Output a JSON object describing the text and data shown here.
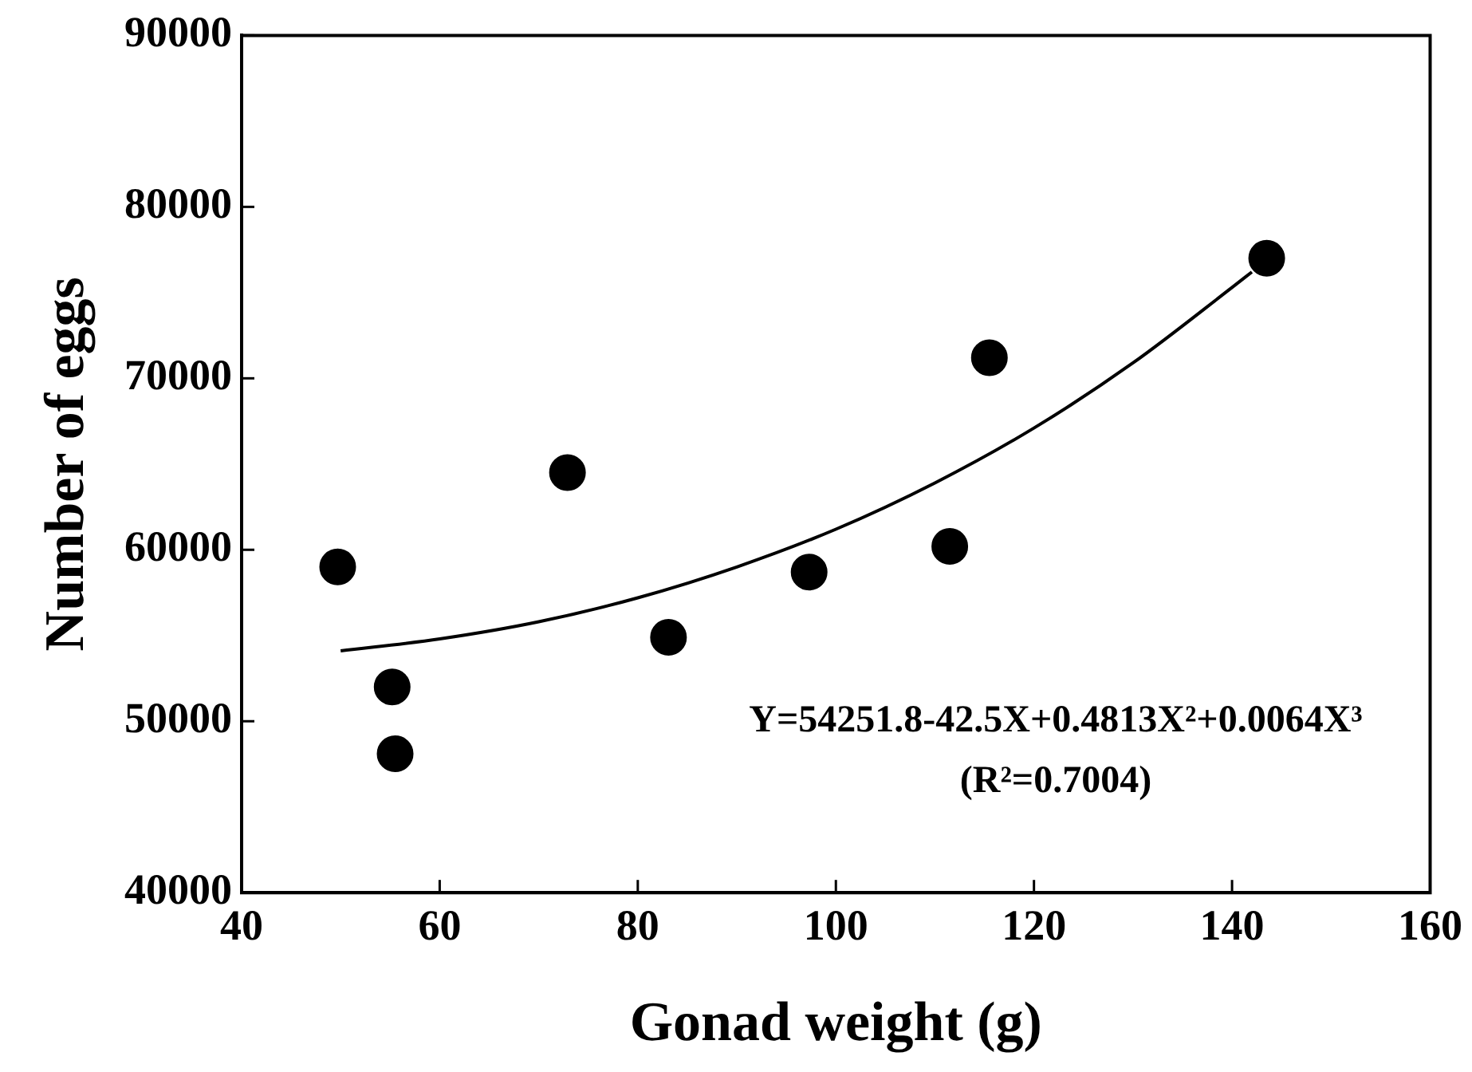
{
  "chart_data": {
    "type": "scatter",
    "xlabel": "Gonad weight (g)",
    "ylabel": "Number of eggs",
    "xlim": [
      40,
      160
    ],
    "xticks": [
      40,
      60,
      80,
      100,
      120,
      140,
      160
    ],
    "ylim": [
      40000,
      90000
    ],
    "yticks": [
      40000,
      50000,
      60000,
      70000,
      80000,
      90000
    ],
    "grid": false,
    "legend": false,
    "marker": "circle",
    "annotations": [
      "Y=54251.8-42.5X+0.4813X²+0.0064X³",
      "(R²=0.7004)"
    ],
    "series": [
      {
        "type": "scatter",
        "color": "#000000",
        "x": [
          49.7,
          55.2,
          55.5,
          72.9,
          83.1,
          97.3,
          111.5,
          115.5,
          143.5
        ],
        "values": [
          59000,
          52000,
          48100,
          64500,
          54900,
          58700,
          60200,
          71200,
          77000
        ]
      },
      {
        "type": "line",
        "color": "#000000",
        "marker": "none",
        "line_style": "solid",
        "x": [
          50,
          60,
          70,
          80,
          90,
          100,
          110,
          120,
          130,
          140,
          142
        ],
        "values": [
          54100,
          54800,
          55800,
          57200,
          59000,
          61200,
          63900,
          67100,
          70900,
          75300,
          76200
        ]
      }
    ]
  }
}
